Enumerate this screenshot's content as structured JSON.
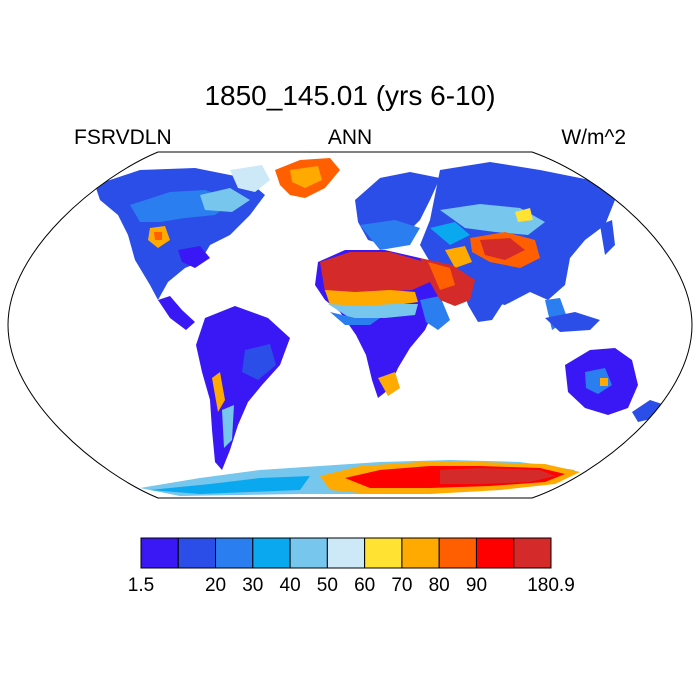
{
  "title": "1850_145.01 (yrs 6-10)",
  "subtitle_left": "FSRVDLN",
  "subtitle_center": "ANN",
  "subtitle_right": "W/m^2",
  "colorbar": {
    "colors": [
      "#3a18f5",
      "#2b4ee8",
      "#2a7ef0",
      "#0aa9ef",
      "#76c6ee",
      "#cde9f8",
      "#ffe232",
      "#ffaa00",
      "#ff5f00",
      "#ff0000",
      "#d42a2a"
    ],
    "labels": [
      "1.5",
      "",
      "20",
      "30",
      "40",
      "50",
      "60",
      "70",
      "80",
      "90",
      "",
      "180.9"
    ]
  },
  "colors": {
    "ocean": "#ffffff",
    "coast": "#000000"
  }
}
